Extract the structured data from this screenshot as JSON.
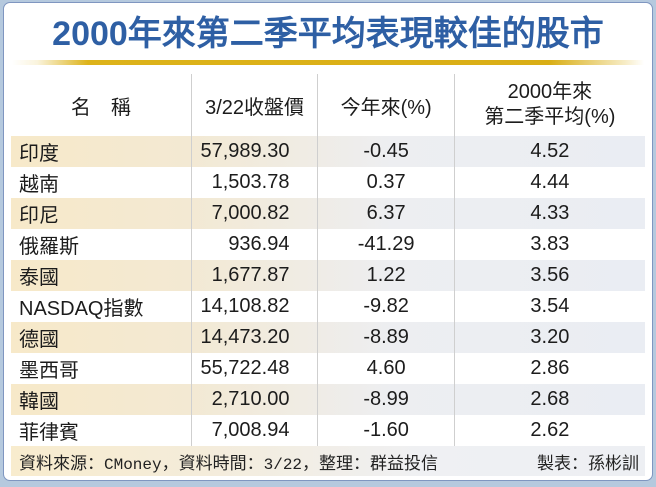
{
  "title": "2000年來第二季平均表現較佳的股市",
  "table": {
    "headers": {
      "name": "名　稱",
      "close": "3/22收盤價",
      "ytd": "今年來(%)",
      "q2avg": "2000年來\n第二季平均(%)"
    },
    "rows": [
      {
        "name": "印度",
        "close": "57,989.30",
        "ytd": "-0.45",
        "q2avg": "4.52"
      },
      {
        "name": "越南",
        "close": "1,503.78",
        "ytd": "0.37",
        "q2avg": "4.44"
      },
      {
        "name": "印尼",
        "close": "7,000.82",
        "ytd": "6.37",
        "q2avg": "4.33"
      },
      {
        "name": "俄羅斯",
        "close": "936.94",
        "ytd": "-41.29",
        "q2avg": "3.83"
      },
      {
        "name": "泰國",
        "close": "1,677.87",
        "ytd": "1.22",
        "q2avg": "3.56"
      },
      {
        "name": "NASDAQ指數",
        "close": "14,108.82",
        "ytd": "-9.82",
        "q2avg": "3.54"
      },
      {
        "name": "德國",
        "close": "14,473.20",
        "ytd": "-8.89",
        "q2avg": "3.20"
      },
      {
        "name": "墨西哥",
        "close": "55,722.48",
        "ytd": "4.60",
        "q2avg": "2.86"
      },
      {
        "name": "韓國",
        "close": "2,710.00",
        "ytd": "-8.99",
        "q2avg": "2.68"
      },
      {
        "name": "菲律賓",
        "close": "7,008.94",
        "ytd": "-1.60",
        "q2avg": "2.62"
      }
    ]
  },
  "footer": {
    "source_label": "資料來源：",
    "source_value": "CMoney",
    "time_label": "，資料時間：",
    "time_value": "3/22",
    "compiler": "，整理：群益投信",
    "credit": "製表：孫彬訓"
  },
  "colors": {
    "title_blue": "#2e5fa4",
    "gold_bar": "#ddb31a",
    "frame_outer": "#b5c9de",
    "frame_border": "#7f96c0",
    "row_beige": "#f7e9c9",
    "row_fade": "#eaedf3",
    "separator_gray": "#cfcfcf"
  },
  "chart_data": {
    "type": "table",
    "title": "2000年來第二季平均表現較佳的股市",
    "columns": [
      "名稱",
      "3/22收盤價",
      "今年來(%)",
      "2000年來第二季平均(%)"
    ],
    "rows": [
      [
        "印度",
        57989.3,
        -0.45,
        4.52
      ],
      [
        "越南",
        1503.78,
        0.37,
        4.44
      ],
      [
        "印尼",
        7000.82,
        6.37,
        4.33
      ],
      [
        "俄羅斯",
        936.94,
        -41.29,
        3.83
      ],
      [
        "泰國",
        1677.87,
        1.22,
        3.56
      ],
      [
        "NASDAQ指數",
        14108.82,
        -9.82,
        3.54
      ],
      [
        "德國",
        14473.2,
        -8.89,
        3.2
      ],
      [
        "墨西哥",
        55722.48,
        4.6,
        2.86
      ],
      [
        "韓國",
        2710.0,
        -8.99,
        2.68
      ],
      [
        "菲律賓",
        7008.94,
        -1.6,
        2.62
      ]
    ],
    "source": "CMoney",
    "data_date": "3/22"
  }
}
